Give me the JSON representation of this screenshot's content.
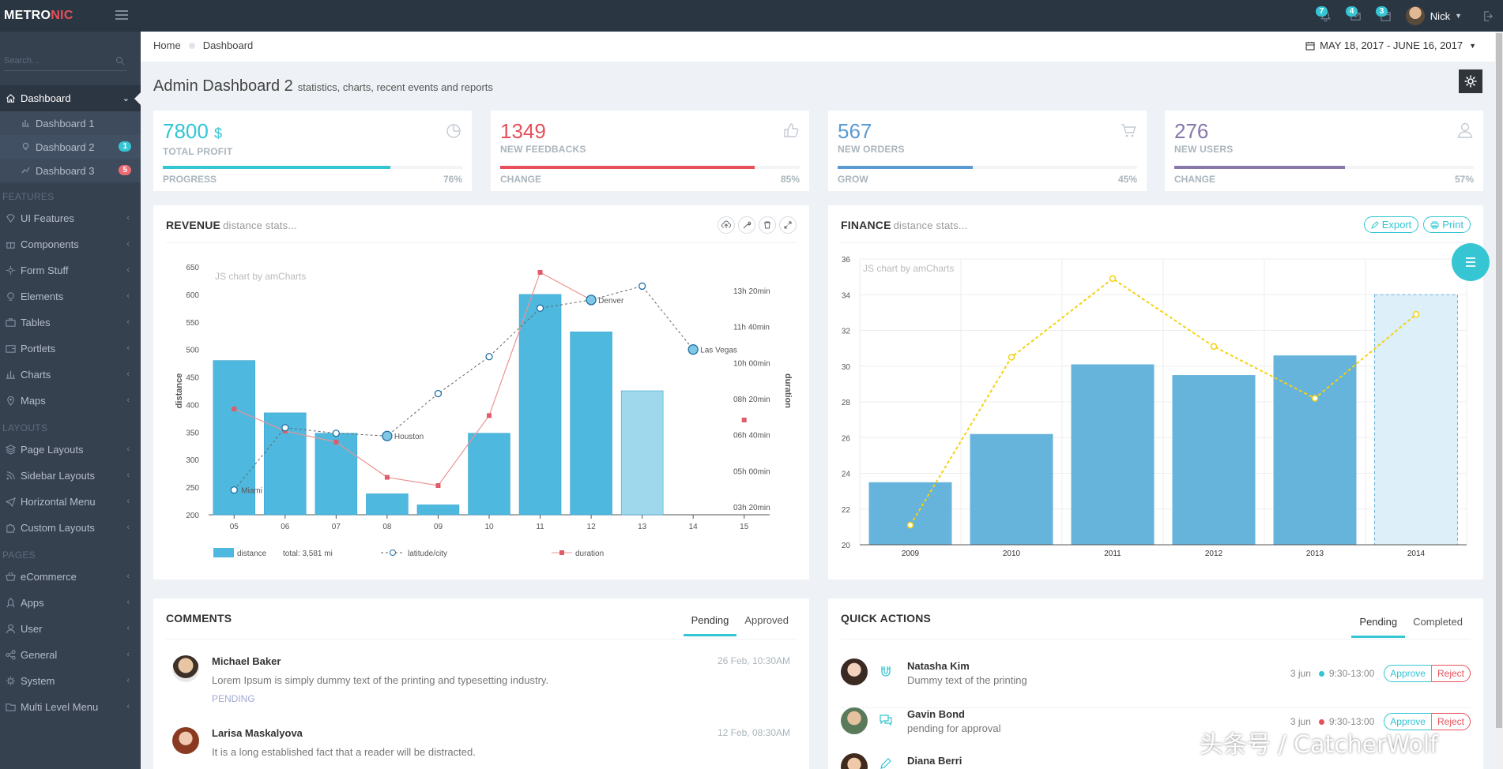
{
  "logo": {
    "text_main": "METRO",
    "text_accent": "NIC"
  },
  "topbar": {
    "notifications_count": "7",
    "inbox_count": "4",
    "tasks_count": "3",
    "user_name": "Nick"
  },
  "sidebar": {
    "search_placeholder": "Search...",
    "dashboard_label": "Dashboard",
    "dashboard_sub": [
      {
        "label": "Dashboard 1",
        "badge": ""
      },
      {
        "label": "Dashboard 2",
        "badge": "1"
      },
      {
        "label": "Dashboard 3",
        "badge": "5"
      }
    ],
    "heading_features": "FEATURES",
    "features": [
      "UI Features",
      "Components",
      "Form Stuff",
      "Elements",
      "Tables",
      "Portlets",
      "Charts",
      "Maps"
    ],
    "heading_layouts": "LAYOUTS",
    "layouts": [
      "Page Layouts",
      "Sidebar Layouts",
      "Horizontal Menu",
      "Custom Layouts"
    ],
    "heading_pages": "PAGES",
    "pages": [
      "eCommerce",
      "Apps",
      "User",
      "General",
      "System",
      "Multi Level Menu"
    ]
  },
  "breadcrumb": {
    "home": "Home",
    "current": "Dashboard"
  },
  "date_range": "MAY 18, 2017 - JUNE 16, 2017",
  "page": {
    "title": "Admin Dashboard 2",
    "subtitle": "statistics, charts, recent events and reports"
  },
  "stats": [
    {
      "value": "7800",
      "unit": "$",
      "label": "TOTAL PROFIT",
      "foot": "PROGRESS",
      "percent": "76%",
      "fraction": 0.76,
      "color": "#32c5d2",
      "icon": "pie-chart-icon"
    },
    {
      "value": "1349",
      "unit": "",
      "label": "NEW FEEDBACKS",
      "foot": "CHANGE",
      "percent": "85%",
      "fraction": 0.85,
      "color": "#e7505a",
      "icon": "thumbs-up-icon"
    },
    {
      "value": "567",
      "unit": "",
      "label": "NEW ORDERS",
      "foot": "GROW",
      "percent": "45%",
      "fraction": 0.45,
      "color": "#5c9bd1",
      "icon": "cart-icon"
    },
    {
      "value": "276",
      "unit": "",
      "label": "NEW USERS",
      "foot": "CHANGE",
      "percent": "57%",
      "fraction": 0.57,
      "color": "#8877a9",
      "icon": "user-icon"
    }
  ],
  "revenue": {
    "title": "REVENUE",
    "subtitle": "distance stats...",
    "watermark": "JS chart by amCharts",
    "tools": [
      "upload-icon",
      "wrench-icon",
      "trash-icon",
      "fullscreen-icon"
    ]
  },
  "finance": {
    "title": "FINANCE",
    "subtitle": "distance stats...",
    "watermark": "JS chart by amCharts",
    "export_label": "Export",
    "print_label": "Print"
  },
  "chart_data": [
    {
      "type": "bar",
      "title": "REVENUE",
      "categories": [
        "05",
        "06",
        "07",
        "08",
        "09",
        "10",
        "11",
        "12",
        "13",
        "14",
        "15"
      ],
      "ylabel": "distance",
      "ylabel_right": "duration",
      "ylim": [
        200,
        650
      ],
      "yticks": [
        200,
        250,
        300,
        350,
        400,
        450,
        500,
        550,
        600,
        650
      ],
      "yticks_right": [
        "03h 20min",
        "05h 00min",
        "06h 40min",
        "08h 20min",
        "10h 00min",
        "11h 40min",
        "13h 20min"
      ],
      "series": [
        {
          "name": "distance",
          "type": "bar",
          "values": [
            480,
            385,
            348,
            238,
            218,
            348,
            600,
            532,
            425,
            null,
            null
          ],
          "highlight_index": 8
        },
        {
          "name": "latitude/city",
          "type": "line",
          "values": [
            245,
            358,
            348,
            343,
            420,
            487,
            575,
            590,
            615,
            500,
            null
          ],
          "labels": {
            "0": "Miami",
            "3": "Houston",
            "7": "Denver",
            "9": "Las Vegas"
          }
        },
        {
          "name": "duration",
          "type": "line",
          "values": [
            392,
            352,
            332,
            268,
            253,
            380,
            640,
            590,
            null,
            500,
            372
          ]
        }
      ],
      "legend": {
        "distance": "distance",
        "total": "total: 3,581 mi",
        "latitude": "latitude/city",
        "duration": "duration"
      }
    },
    {
      "type": "bar",
      "title": "FINANCE",
      "categories": [
        "2009",
        "2010",
        "2011",
        "2012",
        "2013",
        "2014"
      ],
      "ylim": [
        20,
        36
      ],
      "yticks": [
        20,
        22,
        24,
        26,
        28,
        30,
        32,
        34,
        36
      ],
      "series": [
        {
          "name": "bars",
          "type": "bar",
          "values": [
            23.5,
            26.2,
            30.1,
            29.5,
            30.6,
            34.0
          ],
          "dashed_index": 5
        },
        {
          "name": "line",
          "type": "line",
          "values": [
            21.1,
            30.5,
            34.9,
            31.1,
            28.2,
            32.9
          ]
        }
      ]
    }
  ],
  "comments": {
    "title": "COMMENTS",
    "tabs": [
      "Pending",
      "Approved"
    ],
    "items": [
      {
        "name": "Michael Baker",
        "date": "26 Feb, 10:30AM",
        "text": "Lorem Ipsum is simply dummy text of the printing and typesetting industry.",
        "status": "PENDING"
      },
      {
        "name": "Larisa Maskalyova",
        "date": "12 Feb, 08:30AM",
        "text": "It is a long established fact that a reader will be distracted.",
        "status": ""
      }
    ]
  },
  "quick_actions": {
    "title": "QUICK ACTIONS",
    "tabs": [
      "Pending",
      "Completed"
    ],
    "approve_label": "Approve",
    "reject_label": "Reject",
    "items": [
      {
        "name": "Natasha Kim",
        "desc": "Dummy text of the printing",
        "date": "3 jun",
        "time": "9:30-13:00",
        "dot_color": "#32c5d2",
        "icon": "magnet-icon"
      },
      {
        "name": "Gavin Bond",
        "desc": "pending for approval",
        "date": "3 jun",
        "time": "9:30-13:00",
        "dot_color": "#e7505a",
        "icon": "comments-icon"
      },
      {
        "name": "Diana Berri",
        "desc": "",
        "date": "",
        "time": "",
        "dot_color": "#32c5d2",
        "icon": "edit-icon"
      }
    ]
  },
  "watermark": "头条号 / CatcherWolf"
}
